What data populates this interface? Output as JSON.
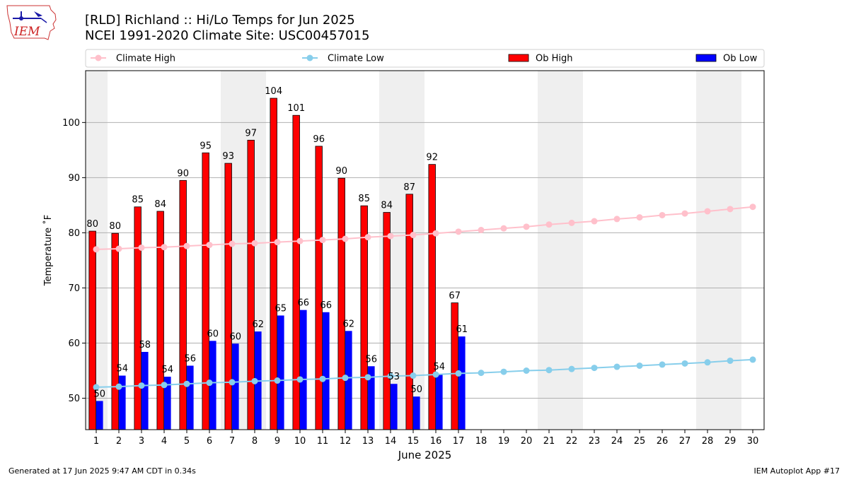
{
  "header": {
    "title_line1": "[RLD] Richland :: Hi/Lo Temps for Jun 2025",
    "title_line2": "NCEI 1991-2020 Climate Site: USC00457015",
    "logo_text": "IEM"
  },
  "footer": {
    "left": "Generated at 17 Jun 2025 9:47 AM CDT in 0.34s",
    "right": "IEM Autoplot App #17"
  },
  "chart_data": {
    "type": "bar",
    "xlabel": "June 2025",
    "ylabel": "Temperature ˚F",
    "ylim": [
      44.3,
      109.4
    ],
    "yticks": [
      50,
      60,
      70,
      80,
      90,
      100
    ],
    "grid": true,
    "legend": "top",
    "weekend_days": [
      1,
      7,
      8,
      14,
      15,
      21,
      22,
      28,
      29
    ],
    "days": [
      1,
      2,
      3,
      4,
      5,
      6,
      7,
      8,
      9,
      10,
      11,
      12,
      13,
      14,
      15,
      16,
      17,
      18,
      19,
      20,
      21,
      22,
      23,
      24,
      25,
      26,
      27,
      28,
      29,
      30
    ],
    "series": [
      {
        "name": "Climate High",
        "kind": "line",
        "color": "#ffc0cb",
        "values": [
          77.0,
          77.1,
          77.3,
          77.4,
          77.6,
          77.8,
          78.0,
          78.1,
          78.3,
          78.5,
          78.7,
          78.9,
          79.2,
          79.4,
          79.6,
          79.9,
          80.2,
          80.5,
          80.8,
          81.1,
          81.5,
          81.8,
          82.1,
          82.5,
          82.8,
          83.2,
          83.5,
          83.9,
          84.3,
          84.7
        ]
      },
      {
        "name": "Climate Low",
        "kind": "line",
        "color": "#87ceeb",
        "values": [
          52.0,
          52.1,
          52.3,
          52.4,
          52.6,
          52.8,
          52.9,
          53.1,
          53.2,
          53.4,
          53.5,
          53.7,
          53.8,
          54.0,
          54.1,
          54.3,
          54.5,
          54.6,
          54.8,
          55.0,
          55.1,
          55.3,
          55.5,
          55.7,
          55.9,
          56.1,
          56.3,
          56.5,
          56.8,
          57.0
        ]
      },
      {
        "name": "Ob High",
        "kind": "bar",
        "color": "#ff0000",
        "values": [
          80.3,
          79.9,
          84.7,
          83.9,
          89.5,
          94.5,
          92.6,
          96.8,
          104.4,
          101.3,
          95.7,
          89.9,
          84.9,
          83.7,
          87.0,
          92.4,
          67.3
        ]
      },
      {
        "name": "Ob Low",
        "kind": "bar",
        "color": "#0000ff",
        "values": [
          49.5,
          54.1,
          58.4,
          53.9,
          55.9,
          60.4,
          59.9,
          62.1,
          65.0,
          66.0,
          65.6,
          62.2,
          55.8,
          52.6,
          50.3,
          54.4,
          61.2
        ]
      }
    ],
    "high_labels": [
      "80",
      "80",
      "85",
      "84",
      "90",
      "95",
      "93",
      "97",
      "104",
      "101",
      "96",
      "90",
      "85",
      "84",
      "87",
      "92",
      "67"
    ],
    "low_labels": [
      "50",
      "54",
      "58",
      "54",
      "56",
      "60",
      "60",
      "62",
      "65",
      "66",
      "66",
      "62",
      "56",
      "53",
      "50",
      "54",
      "61"
    ]
  }
}
